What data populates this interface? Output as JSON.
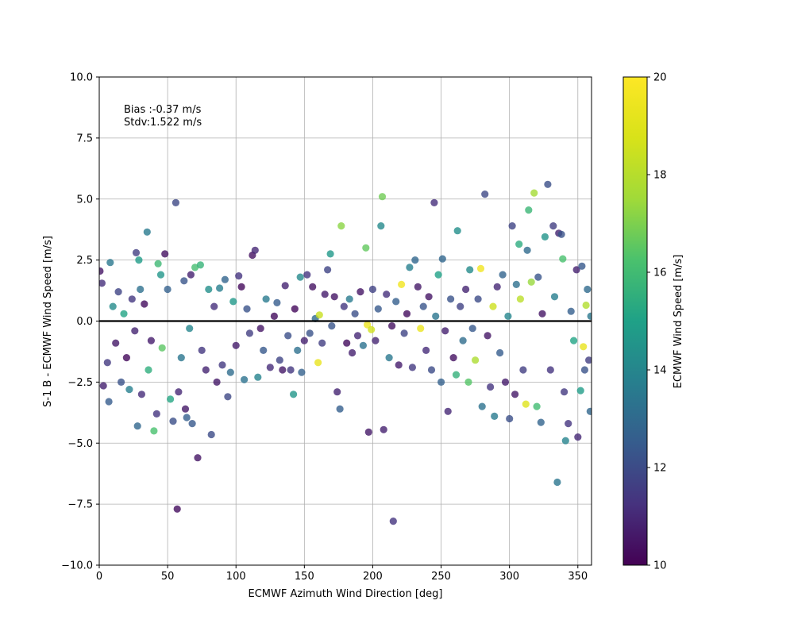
{
  "chart_data": {
    "type": "scatter",
    "xlabel": "ECMWF Azimuth Wind Direction [deg]",
    "ylabel": "S-1 B - ECMWF Wind Speed [m/s]",
    "xlim": [
      0,
      360
    ],
    "ylim": [
      -10,
      10
    ],
    "xticks": [
      0,
      50,
      100,
      150,
      200,
      250,
      300,
      350
    ],
    "xtick_labels": [
      "0",
      "50",
      "100",
      "150",
      "200",
      "250",
      "300",
      "350"
    ],
    "yticks": [
      -10,
      -7.5,
      -5,
      -2.5,
      0,
      2.5,
      5,
      7.5,
      10
    ],
    "ytick_labels": [
      "−10.0",
      "−7.5",
      "−5.0",
      "−2.5",
      "0.0",
      "2.5",
      "5.0",
      "7.5",
      "10.0"
    ],
    "grid": true,
    "annotation": {
      "bias": "Bias :-0.37 m/s",
      "stdv": "Stdv:1.522 m/s"
    },
    "zero_line": 0,
    "colorbar": {
      "label": "ECMWF Wind Speed [m/s]",
      "range": [
        10,
        20
      ],
      "ticks": [
        10,
        12,
        14,
        16,
        18,
        20
      ],
      "tick_labels": [
        "10",
        "12",
        "14",
        "16",
        "18",
        "20"
      ],
      "colormap": "viridis"
    },
    "point_color_units": "ECMWF Wind Speed [m/s]",
    "points": [
      [
        0.5,
        2.05,
        10.5
      ],
      [
        2,
        1.55,
        11.2
      ],
      [
        3,
        -2.65,
        10.8
      ],
      [
        6,
        -1.7,
        11.5
      ],
      [
        7,
        -3.3,
        12.5
      ],
      [
        8,
        2.4,
        13.5
      ],
      [
        10,
        0.6,
        14.2
      ],
      [
        12,
        -0.9,
        10.6
      ],
      [
        14,
        1.2,
        11.8
      ],
      [
        16,
        -2.5,
        12.2
      ],
      [
        18,
        0.3,
        15.1
      ],
      [
        20,
        -1.5,
        10.2
      ],
      [
        22,
        -2.8,
        13.8
      ],
      [
        24,
        0.9,
        11.4
      ],
      [
        26,
        -0.4,
        10.9
      ],
      [
        27,
        2.8,
        11.6
      ],
      [
        28,
        -4.3,
        12.9
      ],
      [
        29,
        2.5,
        14.8
      ],
      [
        30,
        1.3,
        13.2
      ],
      [
        31,
        -3.0,
        11.1
      ],
      [
        33,
        0.7,
        10.3
      ],
      [
        35,
        3.65,
        13.6
      ],
      [
        36,
        -2.0,
        15.5
      ],
      [
        38,
        -0.8,
        10.7
      ],
      [
        40,
        -4.5,
        16.2
      ],
      [
        42,
        -3.8,
        11.3
      ],
      [
        43,
        2.35,
        15.9
      ],
      [
        45,
        1.9,
        14.6
      ],
      [
        46,
        -1.1,
        16.5
      ],
      [
        48,
        2.75,
        10.4
      ],
      [
        50,
        1.3,
        12.7
      ],
      [
        52,
        -3.2,
        15.2
      ],
      [
        54,
        -4.1,
        12.1
      ],
      [
        56,
        4.85,
        11.9
      ],
      [
        57,
        -7.7,
        10.3
      ],
      [
        58,
        -2.9,
        11.0
      ],
      [
        60,
        -1.5,
        13.4
      ],
      [
        62,
        1.65,
        12.3
      ],
      [
        63,
        -3.6,
        10.6
      ],
      [
        64,
        -3.95,
        12.6
      ],
      [
        66,
        -0.3,
        14.0
      ],
      [
        67,
        1.9,
        10.8
      ],
      [
        68,
        -4.2,
        12.4
      ],
      [
        70,
        2.2,
        16.1
      ],
      [
        72,
        -5.6,
        10.5
      ],
      [
        74,
        2.3,
        15.7
      ],
      [
        75,
        -1.2,
        11.4
      ],
      [
        78,
        -2.0,
        10.9
      ],
      [
        80,
        1.3,
        14.3
      ],
      [
        82,
        -4.65,
        12.0
      ],
      [
        84,
        0.6,
        11.2
      ],
      [
        86,
        -2.5,
        10.6
      ],
      [
        88,
        1.35,
        13.7
      ],
      [
        90,
        -1.8,
        11.5
      ],
      [
        92,
        1.7,
        12.8
      ],
      [
        94,
        -3.1,
        11.9
      ],
      [
        96,
        -2.1,
        13.1
      ],
      [
        98,
        0.8,
        14.7
      ],
      [
        100,
        -1.0,
        10.7
      ],
      [
        102,
        1.85,
        11.3
      ],
      [
        104,
        1.4,
        10.2
      ],
      [
        106,
        -2.4,
        13.3
      ],
      [
        108,
        0.5,
        12.2
      ],
      [
        110,
        -0.5,
        11.6
      ],
      [
        112,
        2.7,
        10.4
      ],
      [
        114,
        2.9,
        11.0
      ],
      [
        116,
        -2.3,
        13.9
      ],
      [
        118,
        -0.3,
        10.5
      ],
      [
        120,
        -1.2,
        12.4
      ],
      [
        122,
        0.9,
        13.6
      ],
      [
        125,
        -1.9,
        11.1
      ],
      [
        128,
        0.2,
        10.3
      ],
      [
        130,
        0.75,
        12.5
      ],
      [
        132,
        -1.6,
        11.8
      ],
      [
        134,
        -2.0,
        10.6
      ],
      [
        136,
        1.45,
        10.9
      ],
      [
        138,
        -0.6,
        12.1
      ],
      [
        140,
        -2.0,
        11.4
      ],
      [
        142,
        -3.0,
        14.6
      ],
      [
        143,
        0.5,
        10.2
      ],
      [
        145,
        -1.2,
        13.2
      ],
      [
        147,
        1.8,
        14.1
      ],
      [
        148,
        -2.1,
        12.7
      ],
      [
        150,
        -0.8,
        10.8
      ],
      [
        152,
        1.9,
        11.3
      ],
      [
        154,
        -0.5,
        12.2
      ],
      [
        156,
        1.4,
        10.4
      ],
      [
        158,
        0.1,
        13.0
      ],
      [
        160,
        -1.7,
        19.3
      ],
      [
        161,
        0.25,
        18.4
      ],
      [
        163,
        -0.9,
        11.6
      ],
      [
        165,
        1.1,
        10.7
      ],
      [
        167,
        2.1,
        11.8
      ],
      [
        169,
        2.75,
        14.7
      ],
      [
        170,
        -0.2,
        12.3
      ],
      [
        172,
        1.0,
        10.5
      ],
      [
        174,
        -2.9,
        10.9
      ],
      [
        176,
        -3.6,
        12.6
      ],
      [
        177,
        3.9,
        17.2
      ],
      [
        179,
        0.6,
        11.4
      ],
      [
        181,
        -0.9,
        10.3
      ],
      [
        183,
        0.9,
        13.6
      ],
      [
        185,
        -1.3,
        10.8
      ],
      [
        187,
        0.3,
        12.1
      ],
      [
        189,
        -0.6,
        11.0
      ],
      [
        191,
        1.2,
        10.5
      ],
      [
        193,
        -1.0,
        13.3
      ],
      [
        195,
        3.0,
        16.6
      ],
      [
        196,
        -0.15,
        19.5
      ],
      [
        197,
        -4.55,
        10.6
      ],
      [
        199,
        -0.35,
        18.6
      ],
      [
        200,
        1.3,
        11.7
      ],
      [
        202,
        -0.8,
        10.9
      ],
      [
        204,
        0.5,
        12.4
      ],
      [
        206,
        3.9,
        14.1
      ],
      [
        207,
        5.1,
        16.8
      ],
      [
        208,
        -4.45,
        10.8
      ],
      [
        210,
        1.1,
        11.2
      ],
      [
        212,
        -1.5,
        13.5
      ],
      [
        214,
        -0.2,
        10.4
      ],
      [
        215,
        -8.2,
        11.3
      ],
      [
        217,
        0.8,
        12.6
      ],
      [
        219,
        -1.8,
        10.7
      ],
      [
        221,
        1.5,
        19.6
      ],
      [
        223,
        -0.5,
        11.8
      ],
      [
        225,
        0.3,
        10.3
      ],
      [
        227,
        2.2,
        13.8
      ],
      [
        229,
        -1.9,
        11.5
      ],
      [
        231,
        2.5,
        12.9
      ],
      [
        233,
        1.4,
        10.6
      ],
      [
        235,
        -0.3,
        19.4
      ],
      [
        237,
        0.6,
        12.3
      ],
      [
        239,
        -1.2,
        11.1
      ],
      [
        241,
        1.0,
        10.5
      ],
      [
        243,
        -2.0,
        12.0
      ],
      [
        245,
        4.85,
        11.2
      ],
      [
        246,
        0.2,
        13.4
      ],
      [
        248,
        1.9,
        15.0
      ],
      [
        250,
        -2.5,
        12.7
      ],
      [
        251,
        2.55,
        12.9
      ],
      [
        253,
        -0.4,
        10.8
      ],
      [
        255,
        -3.7,
        11.0
      ],
      [
        257,
        0.9,
        12.2
      ],
      [
        259,
        -1.5,
        10.4
      ],
      [
        261,
        -2.2,
        15.6
      ],
      [
        262,
        3.7,
        14.3
      ],
      [
        264,
        0.6,
        11.7
      ],
      [
        266,
        -0.8,
        13.1
      ],
      [
        268,
        1.3,
        10.9
      ],
      [
        270,
        -2.5,
        16.4
      ],
      [
        271,
        2.1,
        14.2
      ],
      [
        273,
        -0.3,
        12.4
      ],
      [
        275,
        -1.6,
        17.8
      ],
      [
        277,
        0.9,
        12.0
      ],
      [
        279,
        2.15,
        19.6
      ],
      [
        280,
        -3.5,
        13.3
      ],
      [
        282,
        5.2,
        11.9
      ],
      [
        284,
        -0.6,
        10.5
      ],
      [
        286,
        -2.7,
        11.3
      ],
      [
        288,
        0.6,
        18.5
      ],
      [
        289,
        -3.9,
        13.6
      ],
      [
        291,
        1.4,
        11.0
      ],
      [
        293,
        -1.3,
        12.5
      ],
      [
        295,
        1.9,
        12.8
      ],
      [
        297,
        -2.5,
        10.7
      ],
      [
        299,
        0.2,
        14.0
      ],
      [
        300,
        -4.0,
        12.1
      ],
      [
        302,
        3.9,
        11.8
      ],
      [
        304,
        -3.0,
        10.6
      ],
      [
        305,
        1.5,
        13.2
      ],
      [
        307,
        3.15,
        15.4
      ],
      [
        308,
        0.9,
        18.1
      ],
      [
        310,
        -2.0,
        11.6
      ],
      [
        312,
        -3.4,
        19.0
      ],
      [
        313,
        2.9,
        13.0
      ],
      [
        314,
        4.55,
        15.8
      ],
      [
        316,
        1.6,
        17.4
      ],
      [
        318,
        5.25,
        17.6
      ],
      [
        320,
        -3.5,
        16.0
      ],
      [
        321,
        1.8,
        12.3
      ],
      [
        323,
        -4.15,
        12.8
      ],
      [
        324,
        0.3,
        10.5
      ],
      [
        326,
        3.45,
        14.5
      ],
      [
        328,
        5.6,
        12.1
      ],
      [
        330,
        -2.0,
        11.3
      ],
      [
        332,
        3.9,
        11.6
      ],
      [
        333,
        1.0,
        13.7
      ],
      [
        335,
        -6.6,
        13.4
      ],
      [
        336,
        3.6,
        10.9
      ],
      [
        338,
        3.55,
        12.2
      ],
      [
        339,
        2.55,
        16.2
      ],
      [
        340,
        -2.9,
        11.5
      ],
      [
        341,
        -4.9,
        13.9
      ],
      [
        343,
        -4.2,
        11.3
      ],
      [
        345,
        0.4,
        12.6
      ],
      [
        347,
        -0.8,
        15.1
      ],
      [
        349,
        2.1,
        10.8
      ],
      [
        350,
        -4.75,
        11.0
      ],
      [
        352,
        -2.85,
        14.8
      ],
      [
        353,
        2.25,
        12.4
      ],
      [
        354,
        -1.05,
        19.3
      ],
      [
        355,
        -2.0,
        12.2
      ],
      [
        356,
        0.65,
        17.9
      ],
      [
        357,
        1.3,
        13.0
      ],
      [
        358,
        -1.6,
        11.6
      ],
      [
        359,
        -3.7,
        12.9
      ],
      [
        359.5,
        0.2,
        13.5
      ]
    ]
  }
}
